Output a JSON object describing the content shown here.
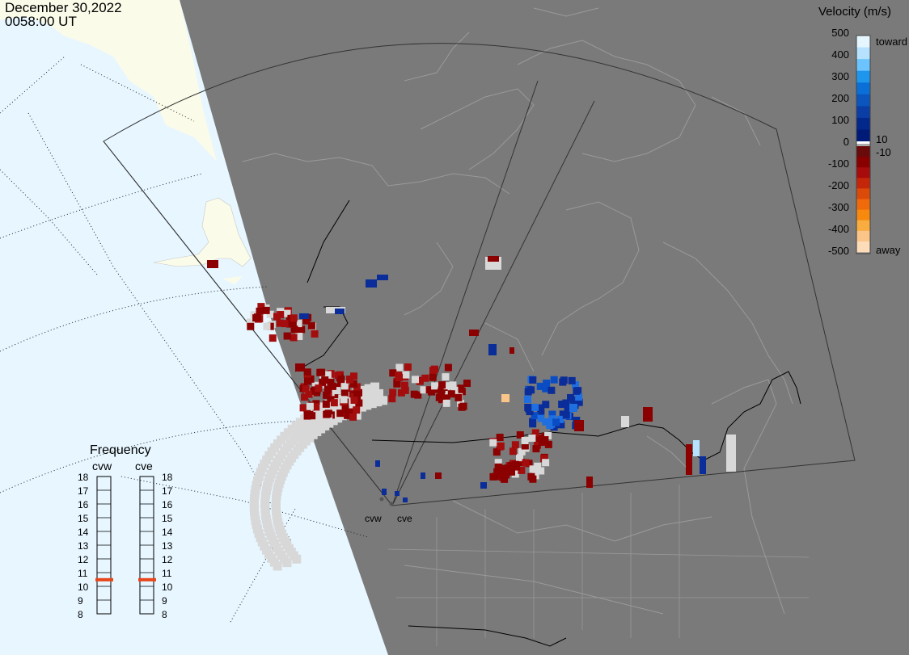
{
  "header": {
    "date": "December 30,2022",
    "time": "0058:00 UT"
  },
  "velocity_legend": {
    "title": "Velocity (m/s)",
    "ticks": [
      "500",
      "400",
      "300",
      "200",
      "100",
      "0",
      "-100",
      "-200",
      "-300",
      "-400",
      "-500"
    ],
    "upper_label": "10",
    "lower_label": "-10",
    "toward_label": "toward",
    "away_label": "away",
    "colors": {
      "toward_scale": [
        "#e6f6ff",
        "#b6e2ff",
        "#6cc4ff",
        "#1f96ee",
        "#0a6fd6",
        "#0a56be",
        "#0a3ea5",
        "#03288c",
        "#001a78"
      ],
      "away_scale": [
        "#6a0a0a",
        "#890000",
        "#a80b0b",
        "#c4260a",
        "#dc4a0a",
        "#f06a0c",
        "#f6890e",
        "#f9ac40",
        "#fbc58a",
        "#fddcb9"
      ]
    }
  },
  "frequency_panel": {
    "title": "Frequency",
    "radars": [
      {
        "name": "cvw",
        "frequency_mhz": 11
      },
      {
        "name": "cve",
        "frequency_mhz": 11
      }
    ],
    "scale": [
      "18",
      "17",
      "16",
      "15",
      "14",
      "13",
      "12",
      "11",
      "10",
      "9",
      "8"
    ],
    "marker_color": "#e8451a"
  },
  "map": {
    "radar_sites": [
      {
        "name": "cvw"
      },
      {
        "name": "cve"
      }
    ],
    "colors": {
      "background": "#7a7a7a",
      "daylight_land": "#fbfbe9",
      "daylight_ocean": "#e7f6ff",
      "coastline": "#c8c8c8",
      "ground_scatter": "#d8d8d8",
      "field_of_view": "#333333",
      "border": "#000000"
    }
  }
}
